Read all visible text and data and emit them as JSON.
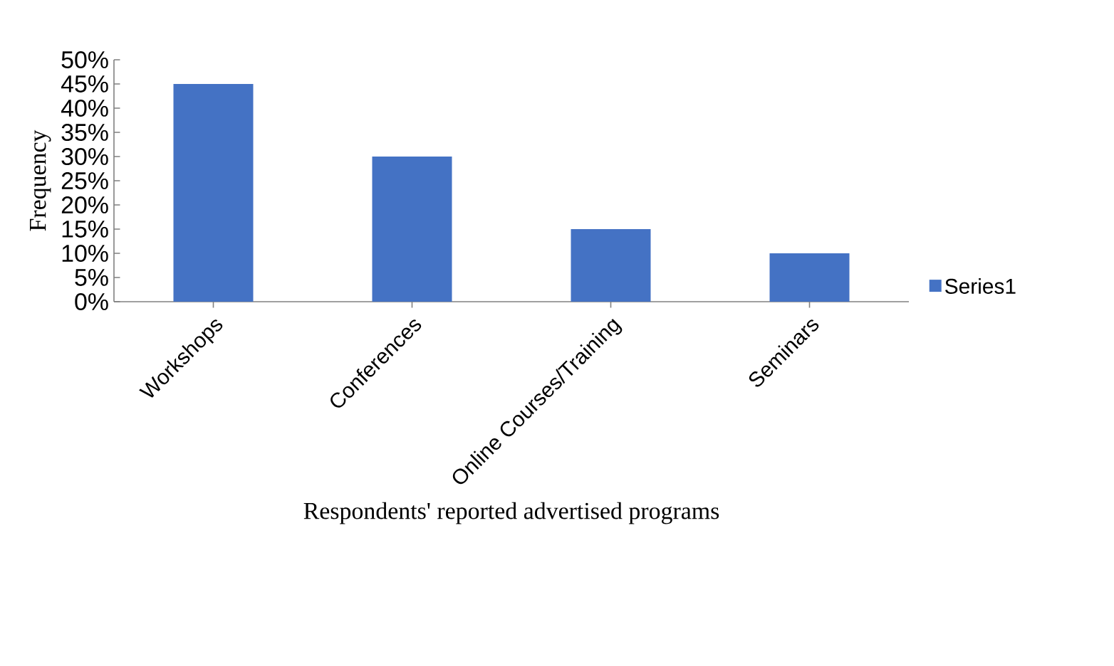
{
  "chart_data": {
    "type": "bar",
    "xlabel": "Respondents' reported advertised programs",
    "ylabel": "Frequency",
    "categories": [
      "Workshops",
      "Conferences",
      "Online Courses/Training",
      "Seminars"
    ],
    "series": [
      {
        "name": "Series1",
        "color": "#4472c4",
        "values": [
          45,
          30,
          15,
          10
        ]
      }
    ],
    "ylim": [
      0,
      50
    ],
    "yticks": [
      {
        "value": 0,
        "label": "0%"
      },
      {
        "value": 5,
        "label": "5%"
      },
      {
        "value": 10,
        "label": "10%"
      },
      {
        "value": 15,
        "label": "15%"
      },
      {
        "value": 20,
        "label": "20%"
      },
      {
        "value": 25,
        "label": "25%"
      },
      {
        "value": 30,
        "label": "30%"
      },
      {
        "value": 35,
        "label": "35%"
      },
      {
        "value": 40,
        "label": "40%"
      },
      {
        "value": 45,
        "label": "45%"
      },
      {
        "value": 50,
        "label": "50%"
      }
    ],
    "grid": false,
    "legend": "right"
  }
}
